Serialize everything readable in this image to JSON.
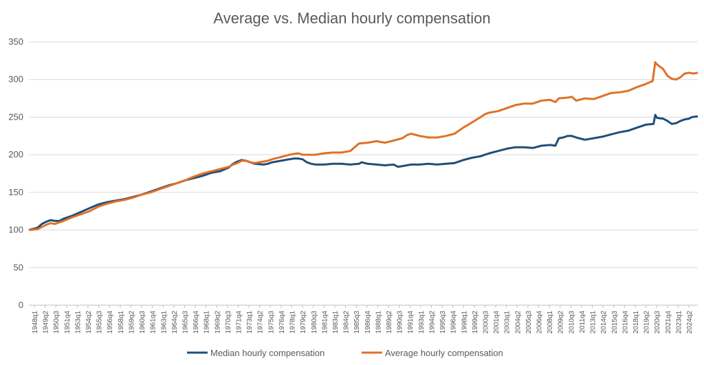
{
  "chart_data": {
    "type": "line",
    "title": "Average vs. Median hourly compensation",
    "xlabel": "",
    "ylabel": "",
    "ylim": [
      0,
      350
    ],
    "yticks": [
      0,
      50,
      100,
      150,
      200,
      250,
      300,
      350
    ],
    "grid": true,
    "legend_position": "bottom",
    "x_tick_labels": [
      "1948q1",
      "1949q2",
      "1950q3",
      "1951q4",
      "1953q1",
      "1954q2",
      "1955q3",
      "1956q4",
      "1958q1",
      "1959q2",
      "1960q3",
      "1961q4",
      "1963q1",
      "1964q2",
      "1965q3",
      "1966q4",
      "1968q1",
      "1969q2",
      "1970q3",
      "1971q4",
      "1973q1",
      "1974q2",
      "1975q3",
      "1976q4",
      "1978q1",
      "1979q2",
      "1980q3",
      "1981q4",
      "1983q1",
      "1984q2",
      "1985q3",
      "1986q4",
      "1988q1",
      "1989q2",
      "1990q3",
      "1991q4",
      "1993q1",
      "1994q2",
      "1995q3",
      "1996q4",
      "1998q1",
      "1999q2",
      "2000q3",
      "2001q4",
      "2003q1",
      "2004q2",
      "2005q3",
      "2006q4",
      "2008q1",
      "2009q2",
      "2010q3",
      "2011q4",
      "2013q1",
      "2014q2",
      "2015q3",
      "2016q4",
      "2018q1",
      "2019q2",
      "2020q3",
      "2021q4",
      "2023q1",
      "2024q2"
    ],
    "series": [
      {
        "name": "Median hourly compensation",
        "color": "#1f4e79",
        "points": [
          [
            1948.0,
            100
          ],
          [
            1949.0,
            103
          ],
          [
            1949.5,
            108
          ],
          [
            1950.0,
            111
          ],
          [
            1950.5,
            113
          ],
          [
            1951.0,
            112
          ],
          [
            1951.5,
            112
          ],
          [
            1952.0,
            115
          ],
          [
            1953.0,
            119
          ],
          [
            1954.0,
            124
          ],
          [
            1955.0,
            129
          ],
          [
            1956.0,
            134
          ],
          [
            1957.0,
            137
          ],
          [
            1958.0,
            139
          ],
          [
            1959.0,
            141
          ],
          [
            1960.0,
            144
          ],
          [
            1961.0,
            147
          ],
          [
            1962.0,
            151
          ],
          [
            1963.0,
            155
          ],
          [
            1964.0,
            159
          ],
          [
            1965.0,
            162
          ],
          [
            1966.0,
            166
          ],
          [
            1967.0,
            169
          ],
          [
            1968.0,
            172
          ],
          [
            1969.0,
            176
          ],
          [
            1970.0,
            178
          ],
          [
            1971.0,
            183
          ],
          [
            1971.5,
            188
          ],
          [
            1972.0,
            191
          ],
          [
            1972.5,
            193
          ],
          [
            1973.0,
            192
          ],
          [
            1973.5,
            190
          ],
          [
            1974.0,
            188
          ],
          [
            1975.0,
            187
          ],
          [
            1975.5,
            188
          ],
          [
            1976.0,
            190
          ],
          [
            1977.0,
            192
          ],
          [
            1978.0,
            194
          ],
          [
            1978.5,
            195
          ],
          [
            1979.0,
            195
          ],
          [
            1979.5,
            194
          ],
          [
            1980.0,
            190
          ],
          [
            1980.5,
            188
          ],
          [
            1981.0,
            187
          ],
          [
            1982.0,
            187
          ],
          [
            1983.0,
            188
          ],
          [
            1984.0,
            188
          ],
          [
            1985.0,
            187
          ],
          [
            1986.0,
            188
          ],
          [
            1986.3,
            190
          ],
          [
            1987.0,
            188
          ],
          [
            1988.0,
            187
          ],
          [
            1989.0,
            186
          ],
          [
            1990.0,
            187
          ],
          [
            1990.5,
            184
          ],
          [
            1991.0,
            185
          ],
          [
            1992.0,
            187
          ],
          [
            1993.0,
            187
          ],
          [
            1994.0,
            188
          ],
          [
            1995.0,
            187
          ],
          [
            1996.0,
            188
          ],
          [
            1997.0,
            189
          ],
          [
            1998.0,
            193
          ],
          [
            1999.0,
            196
          ],
          [
            2000.0,
            198
          ],
          [
            2000.5,
            200
          ],
          [
            2001.0,
            202
          ],
          [
            2002.0,
            205
          ],
          [
            2003.0,
            208
          ],
          [
            2004.0,
            210
          ],
          [
            2005.0,
            210
          ],
          [
            2006.0,
            209
          ],
          [
            2007.0,
            212
          ],
          [
            2008.0,
            213
          ],
          [
            2008.6,
            212
          ],
          [
            2009.0,
            222
          ],
          [
            2009.5,
            223
          ],
          [
            2010.0,
            225
          ],
          [
            2010.5,
            225
          ],
          [
            2011.0,
            223
          ],
          [
            2012.0,
            220
          ],
          [
            2013.0,
            222
          ],
          [
            2014.0,
            224
          ],
          [
            2015.0,
            227
          ],
          [
            2016.0,
            230
          ],
          [
            2017.0,
            232
          ],
          [
            2018.0,
            236
          ],
          [
            2019.0,
            240
          ],
          [
            2019.9,
            241
          ],
          [
            2020.1,
            253
          ],
          [
            2020.3,
            249
          ],
          [
            2021.0,
            248
          ],
          [
            2021.5,
            245
          ],
          [
            2022.0,
            241
          ],
          [
            2022.5,
            242
          ],
          [
            2023.0,
            245
          ],
          [
            2023.5,
            247
          ],
          [
            2024.0,
            248
          ],
          [
            2024.3,
            250
          ],
          [
            2025.0,
            251
          ]
        ]
      },
      {
        "name": "Average hourly compensation",
        "color": "#e07026",
        "points": [
          [
            1948.0,
            100
          ],
          [
            1949.0,
            101
          ],
          [
            1949.5,
            104
          ],
          [
            1950.0,
            107
          ],
          [
            1950.5,
            109
          ],
          [
            1951.0,
            108
          ],
          [
            1951.5,
            110
          ],
          [
            1952.0,
            112
          ],
          [
            1953.0,
            117
          ],
          [
            1954.0,
            121
          ],
          [
            1955.0,
            125
          ],
          [
            1956.0,
            131
          ],
          [
            1957.0,
            135
          ],
          [
            1958.0,
            138
          ],
          [
            1959.0,
            140
          ],
          [
            1960.0,
            143
          ],
          [
            1961.0,
            147
          ],
          [
            1962.0,
            150
          ],
          [
            1963.0,
            154
          ],
          [
            1964.0,
            158
          ],
          [
            1965.0,
            162
          ],
          [
            1966.0,
            166
          ],
          [
            1967.0,
            171
          ],
          [
            1968.0,
            175
          ],
          [
            1969.0,
            178
          ],
          [
            1970.0,
            181
          ],
          [
            1971.0,
            184
          ],
          [
            1971.5,
            187
          ],
          [
            1972.0,
            189
          ],
          [
            1972.5,
            192
          ],
          [
            1973.0,
            192
          ],
          [
            1973.5,
            190
          ],
          [
            1974.0,
            189
          ],
          [
            1975.0,
            191
          ],
          [
            1975.5,
            192
          ],
          [
            1976.0,
            194
          ],
          [
            1977.0,
            197
          ],
          [
            1978.0,
            200
          ],
          [
            1978.5,
            201
          ],
          [
            1979.0,
            202
          ],
          [
            1979.5,
            200
          ],
          [
            1980.0,
            200
          ],
          [
            1981.0,
            200
          ],
          [
            1982.0,
            202
          ],
          [
            1983.0,
            203
          ],
          [
            1984.0,
            203
          ],
          [
            1985.0,
            205
          ],
          [
            1985.5,
            210
          ],
          [
            1986.0,
            215
          ],
          [
            1987.0,
            216
          ],
          [
            1988.0,
            218
          ],
          [
            1989.0,
            216
          ],
          [
            1990.0,
            219
          ],
          [
            1991.0,
            222
          ],
          [
            1991.5,
            226
          ],
          [
            1992.0,
            228
          ],
          [
            1993.0,
            225
          ],
          [
            1994.0,
            223
          ],
          [
            1995.0,
            223
          ],
          [
            1996.0,
            225
          ],
          [
            1997.0,
            228
          ],
          [
            1998.0,
            236
          ],
          [
            1999.0,
            243
          ],
          [
            2000.0,
            250
          ],
          [
            2000.5,
            254
          ],
          [
            2001.0,
            256
          ],
          [
            2002.0,
            258
          ],
          [
            2003.0,
            262
          ],
          [
            2004.0,
            266
          ],
          [
            2005.0,
            268
          ],
          [
            2006.0,
            268
          ],
          [
            2007.0,
            272
          ],
          [
            2008.0,
            273
          ],
          [
            2008.6,
            270
          ],
          [
            2009.0,
            275
          ],
          [
            2010.0,
            276
          ],
          [
            2010.5,
            277
          ],
          [
            2011.0,
            272
          ],
          [
            2012.0,
            275
          ],
          [
            2013.0,
            274
          ],
          [
            2014.0,
            278
          ],
          [
            2015.0,
            282
          ],
          [
            2016.0,
            283
          ],
          [
            2017.0,
            285
          ],
          [
            2018.0,
            290
          ],
          [
            2019.0,
            294
          ],
          [
            2019.8,
            298
          ],
          [
            2020.1,
            323
          ],
          [
            2020.3,
            320
          ],
          [
            2021.0,
            314
          ],
          [
            2021.5,
            305
          ],
          [
            2022.0,
            301
          ],
          [
            2022.5,
            300
          ],
          [
            2023.0,
            303
          ],
          [
            2023.5,
            308
          ],
          [
            2024.0,
            309
          ],
          [
            2024.5,
            308
          ],
          [
            2025.0,
            309
          ]
        ]
      }
    ]
  }
}
